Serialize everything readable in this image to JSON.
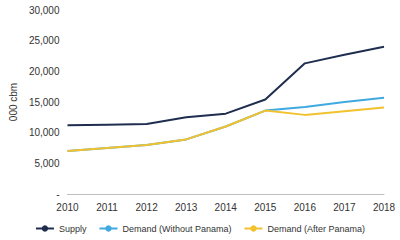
{
  "chart_data": {
    "type": "line",
    "y_label": "000 cbm",
    "categories": [
      "2010",
      "2011",
      "2012",
      "2013",
      "2014",
      "2015",
      "2016",
      "2017",
      "2018"
    ],
    "series": [
      {
        "name": "Supply",
        "color": "#1f2d4e",
        "values": [
          11200,
          11300,
          11400,
          12500,
          13100,
          15400,
          21300,
          22700,
          24000
        ]
      },
      {
        "name": "Demand (Without Panama)",
        "color": "#3fa9e0",
        "values": [
          7000,
          7500,
          8000,
          8900,
          11000,
          13600,
          14200,
          15000,
          15700
        ]
      },
      {
        "name": "Demand (After Panama)",
        "color": "#f2c12e",
        "values": [
          7000,
          7500,
          8000,
          8900,
          11000,
          13600,
          12900,
          13500,
          14100
        ]
      }
    ],
    "ylim": [
      0,
      30000
    ],
    "yticks": [
      {
        "value": 0,
        "label": "-"
      },
      {
        "value": 5000,
        "label": "5,000"
      },
      {
        "value": 10000,
        "label": "10,000"
      },
      {
        "value": 15000,
        "label": "15,000"
      },
      {
        "value": 20000,
        "label": "20,000"
      },
      {
        "value": 25000,
        "label": "25,000"
      },
      {
        "value": 30000,
        "label": "30,000"
      }
    ],
    "grid": false,
    "legend": "bottom"
  }
}
